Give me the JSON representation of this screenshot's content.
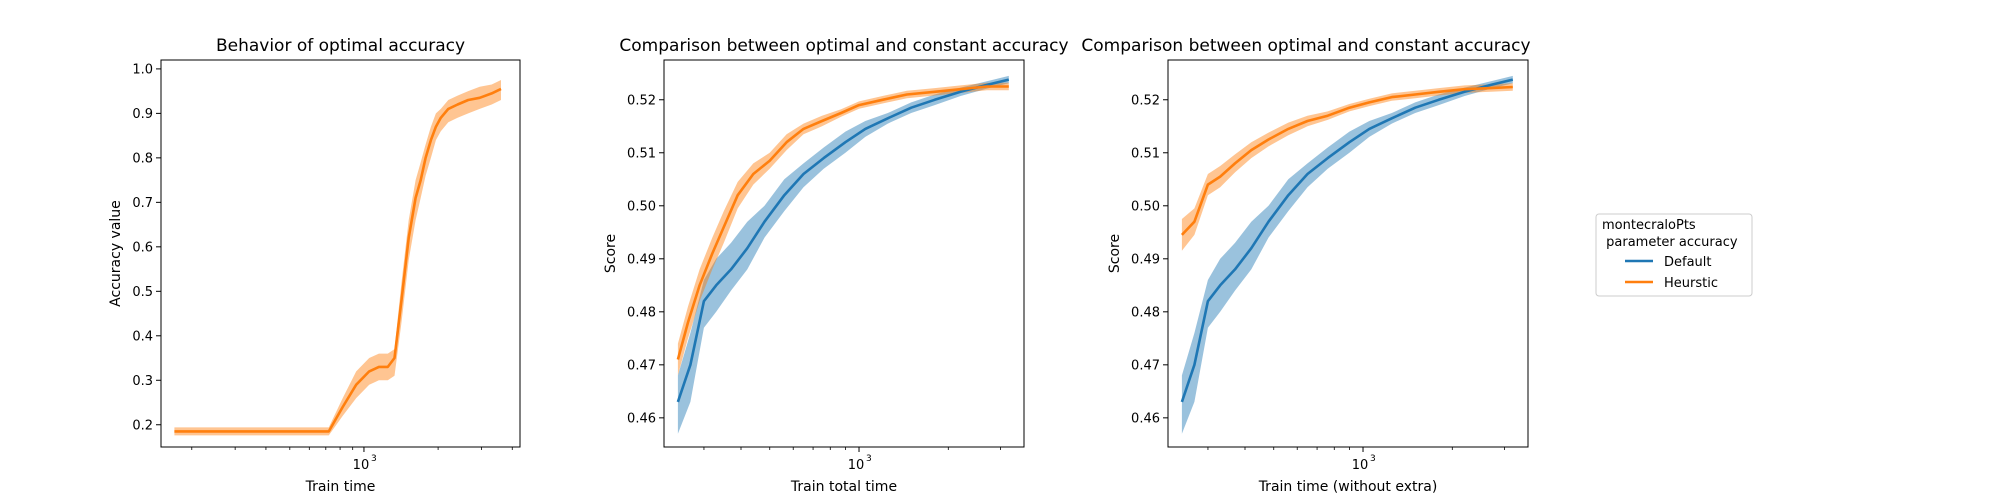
{
  "chart_data": [
    {
      "type": "line",
      "title": "Behavior of optimal accuracy",
      "xlabel": "Train time",
      "ylabel": "Accuracy value",
      "xscale": "log",
      "xlim": [
        150,
        4300
      ],
      "ylim": [
        0.15,
        1.02
      ],
      "xticks": [
        {
          "value": 1000,
          "label": "10",
          "exp": "3"
        }
      ],
      "yticks": [
        {
          "value": 0.2,
          "label": "0.2"
        },
        {
          "value": 0.3,
          "label": "0.3"
        },
        {
          "value": 0.4,
          "label": "0.4"
        },
        {
          "value": 0.5,
          "label": "0.5"
        },
        {
          "value": 0.6,
          "label": "0.6"
        },
        {
          "value": 0.7,
          "label": "0.7"
        },
        {
          "value": 0.8,
          "label": "0.8"
        },
        {
          "value": 0.9,
          "label": "0.9"
        },
        {
          "value": 1.0,
          "label": "1.0"
        }
      ],
      "grid": false,
      "series": [
        {
          "color": "#ff7f0e",
          "x": [
            170,
            250,
            400,
            550,
            720,
            820,
            930,
            1050,
            1150,
            1250,
            1330,
            1420,
            1520,
            1620,
            1700,
            1780,
            1870,
            1960,
            2050,
            2200,
            2400,
            2650,
            2950,
            3300,
            3600
          ],
          "y": [
            0.185,
            0.185,
            0.185,
            0.185,
            0.185,
            0.24,
            0.29,
            0.32,
            0.33,
            0.33,
            0.35,
            0.48,
            0.62,
            0.71,
            0.75,
            0.8,
            0.84,
            0.87,
            0.89,
            0.91,
            0.92,
            0.93,
            0.935,
            0.945,
            0.955
          ],
          "lower": [
            0.176,
            0.176,
            0.176,
            0.176,
            0.176,
            0.22,
            0.26,
            0.29,
            0.3,
            0.3,
            0.31,
            0.43,
            0.57,
            0.66,
            0.71,
            0.76,
            0.8,
            0.84,
            0.86,
            0.88,
            0.89,
            0.9,
            0.91,
            0.92,
            0.93
          ],
          "upper": [
            0.194,
            0.194,
            0.194,
            0.194,
            0.194,
            0.26,
            0.32,
            0.35,
            0.36,
            0.36,
            0.37,
            0.52,
            0.66,
            0.75,
            0.79,
            0.83,
            0.87,
            0.9,
            0.91,
            0.93,
            0.94,
            0.95,
            0.96,
            0.965,
            0.975
          ]
        }
      ]
    },
    {
      "type": "line",
      "title": "Comparison between optimal and constant accuracy",
      "xlabel": "Train total time",
      "ylabel": "Score",
      "xscale": "log",
      "xlim": [
        220,
        3600
      ],
      "ylim": [
        0.4545,
        0.5275
      ],
      "xticks": [
        {
          "value": 1000,
          "label": "10",
          "exp": "3"
        }
      ],
      "yticks": [
        {
          "value": 0.46,
          "label": "0.46"
        },
        {
          "value": 0.47,
          "label": "0.47"
        },
        {
          "value": 0.48,
          "label": "0.48"
        },
        {
          "value": 0.49,
          "label": "0.49"
        },
        {
          "value": 0.5,
          "label": "0.50"
        },
        {
          "value": 0.51,
          "label": "0.51"
        },
        {
          "value": 0.52,
          "label": "0.52"
        }
      ],
      "grid": false,
      "series": [
        {
          "name": "Default",
          "color": "#1f77b4",
          "x": [
            245,
            270,
            300,
            330,
            370,
            420,
            480,
            560,
            650,
            760,
            900,
            1050,
            1250,
            1500,
            1800,
            2200,
            2700,
            3200
          ],
          "y": [
            0.463,
            0.47,
            0.482,
            0.485,
            0.488,
            0.492,
            0.497,
            0.502,
            0.506,
            0.509,
            0.512,
            0.5145,
            0.5165,
            0.5185,
            0.52,
            0.5215,
            0.5228,
            0.5238
          ],
          "lower": [
            0.457,
            0.463,
            0.477,
            0.48,
            0.484,
            0.488,
            0.494,
            0.499,
            0.5035,
            0.507,
            0.51,
            0.513,
            0.5155,
            0.5175,
            0.519,
            0.5207,
            0.5221,
            0.5231
          ],
          "upper": [
            0.468,
            0.476,
            0.486,
            0.49,
            0.493,
            0.497,
            0.5,
            0.505,
            0.508,
            0.511,
            0.514,
            0.516,
            0.5175,
            0.5195,
            0.521,
            0.5223,
            0.5235,
            0.5245
          ]
        },
        {
          "name": "Heurstic",
          "color": "#ff7f0e",
          "x": [
            245,
            265,
            290,
            320,
            350,
            390,
            440,
            500,
            570,
            650,
            750,
            870,
            1000,
            1200,
            1450,
            1800,
            2200,
            2700,
            3200
          ],
          "y": [
            0.471,
            0.478,
            0.485,
            0.491,
            0.496,
            0.502,
            0.506,
            0.5085,
            0.512,
            0.5145,
            0.516,
            0.5175,
            0.519,
            0.52,
            0.521,
            0.5215,
            0.522,
            0.5225,
            0.5225
          ],
          "lower": [
            0.468,
            0.475,
            0.482,
            0.488,
            0.493,
            0.4995,
            0.504,
            0.507,
            0.5105,
            0.5135,
            0.515,
            0.5168,
            0.5183,
            0.5193,
            0.5203,
            0.5208,
            0.5213,
            0.5218,
            0.5218
          ],
          "upper": [
            0.474,
            0.481,
            0.488,
            0.494,
            0.499,
            0.5045,
            0.508,
            0.51,
            0.5135,
            0.5155,
            0.517,
            0.5182,
            0.5197,
            0.5207,
            0.5217,
            0.5222,
            0.5227,
            0.5232,
            0.5232
          ]
        }
      ]
    },
    {
      "type": "line",
      "title": "Comparison between optimal and constant accuracy",
      "xlabel": "Train time (without extra)",
      "ylabel": "Score",
      "xscale": "log",
      "xlim": [
        220,
        3600
      ],
      "ylim": [
        0.4545,
        0.5275
      ],
      "xticks": [
        {
          "value": 1000,
          "label": "10",
          "exp": "3"
        }
      ],
      "yticks": [
        {
          "value": 0.46,
          "label": "0.46"
        },
        {
          "value": 0.47,
          "label": "0.47"
        },
        {
          "value": 0.48,
          "label": "0.48"
        },
        {
          "value": 0.49,
          "label": "0.49"
        },
        {
          "value": 0.5,
          "label": "0.50"
        },
        {
          "value": 0.51,
          "label": "0.51"
        },
        {
          "value": 0.52,
          "label": "0.52"
        }
      ],
      "grid": false,
      "series": [
        {
          "name": "Default",
          "color": "#1f77b4",
          "x": [
            245,
            270,
            300,
            330,
            370,
            420,
            480,
            560,
            650,
            760,
            900,
            1050,
            1250,
            1500,
            1800,
            2200,
            2700,
            3200
          ],
          "y": [
            0.463,
            0.47,
            0.482,
            0.485,
            0.488,
            0.492,
            0.497,
            0.502,
            0.506,
            0.509,
            0.512,
            0.5145,
            0.5165,
            0.5185,
            0.52,
            0.5215,
            0.5228,
            0.5238
          ],
          "lower": [
            0.457,
            0.463,
            0.477,
            0.48,
            0.484,
            0.488,
            0.494,
            0.499,
            0.5035,
            0.507,
            0.51,
            0.513,
            0.5155,
            0.5175,
            0.519,
            0.5207,
            0.5221,
            0.5231
          ],
          "upper": [
            0.468,
            0.476,
            0.486,
            0.49,
            0.493,
            0.497,
            0.5,
            0.505,
            0.508,
            0.511,
            0.514,
            0.516,
            0.5175,
            0.5195,
            0.521,
            0.5223,
            0.5235,
            0.5245
          ]
        },
        {
          "name": "Heurstic",
          "color": "#ff7f0e",
          "x": [
            245,
            270,
            300,
            330,
            370,
            420,
            480,
            560,
            650,
            760,
            900,
            1050,
            1250,
            1500,
            1800,
            2200,
            2700,
            3200
          ],
          "y": [
            0.4945,
            0.497,
            0.504,
            0.5055,
            0.508,
            0.5105,
            0.5125,
            0.5145,
            0.516,
            0.517,
            0.5185,
            0.5195,
            0.5205,
            0.521,
            0.5215,
            0.522,
            0.5222,
            0.5224
          ],
          "lower": [
            0.4915,
            0.4945,
            0.502,
            0.5035,
            0.5063,
            0.509,
            0.5112,
            0.5133,
            0.515,
            0.5162,
            0.5178,
            0.5188,
            0.5198,
            0.5203,
            0.5208,
            0.5213,
            0.5215,
            0.5217
          ],
          "upper": [
            0.4975,
            0.4995,
            0.506,
            0.5075,
            0.5097,
            0.512,
            0.5138,
            0.5157,
            0.517,
            0.5178,
            0.5192,
            0.5202,
            0.5212,
            0.5217,
            0.5222,
            0.5227,
            0.5229,
            0.5231
          ]
        }
      ]
    }
  ],
  "legend": {
    "title_line1": "montecraloPts",
    "title_line2": " parameter accuracy",
    "placement": "center-right",
    "entries": [
      {
        "label": "Default",
        "color": "#1f77b4"
      },
      {
        "label": "Heurstic",
        "color": "#ff7f0e"
      }
    ]
  }
}
